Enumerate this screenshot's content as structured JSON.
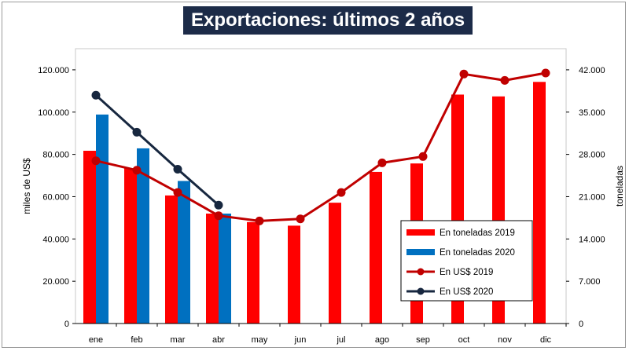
{
  "chart_data": {
    "type": "bar+line",
    "title": "Exportaciones: últimos 2 años",
    "categories": [
      "ene",
      "feb",
      "mar",
      "abr",
      "may",
      "jun",
      "jul",
      "ago",
      "sep",
      "oct",
      "nov",
      "dic"
    ],
    "ylabel_left": "miles de US$",
    "ylabel_right": "toneladas",
    "ylim_left": [
      0,
      130000
    ],
    "ylim_right": [
      0,
      45500
    ],
    "yticks_left": [
      "0",
      "20.000",
      "40.000",
      "60.000",
      "80.000",
      "100.000",
      "120.000"
    ],
    "yticks_right": [
      "0",
      "7.000",
      "14.000",
      "21.000",
      "28.000",
      "35.000",
      "42.000"
    ],
    "series": [
      {
        "name": "En toneladas 2019",
        "kind": "bar",
        "axis": "right",
        "color": "#ff0000",
        "values": [
          28600,
          25700,
          21200,
          18200,
          16800,
          16200,
          20000,
          25100,
          26500,
          37900,
          37600,
          40000
        ]
      },
      {
        "name": "En toneladas 2020",
        "kind": "bar",
        "axis": "right",
        "color": "#0070c0",
        "values": [
          34600,
          29000,
          23600,
          18200,
          null,
          null,
          null,
          null,
          null,
          null,
          null,
          null
        ]
      },
      {
        "name": "En US$ 2019",
        "kind": "line",
        "axis": "left",
        "color": "#c00000",
        "values": [
          77000,
          72500,
          62000,
          51000,
          48500,
          49500,
          62000,
          76000,
          79000,
          118000,
          115000,
          118500
        ]
      },
      {
        "name": "En US$ 2020",
        "kind": "line",
        "axis": "left",
        "color": "#17273f",
        "values": [
          108000,
          90500,
          73000,
          56000,
          null,
          null,
          null,
          null,
          null,
          null,
          null,
          null
        ]
      }
    ],
    "legend": "bottom-right"
  }
}
